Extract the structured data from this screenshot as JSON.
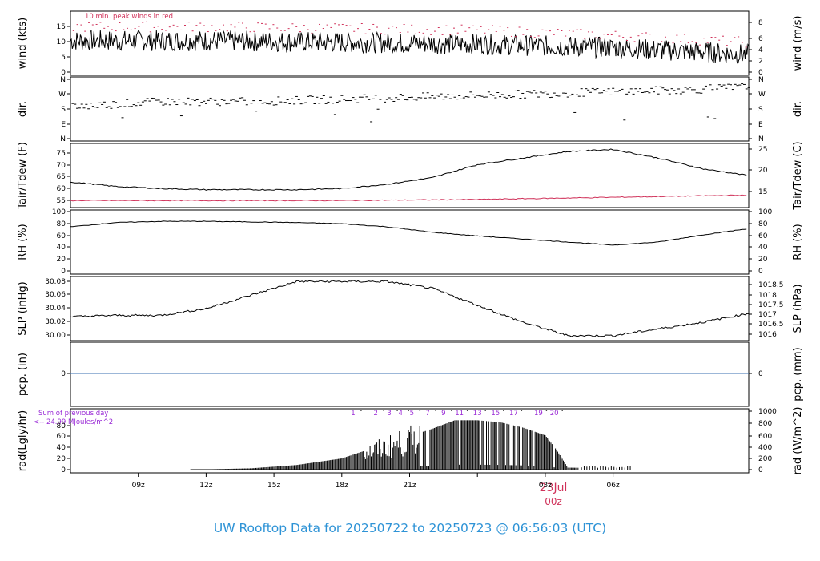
{
  "footer": {
    "title": "UW Rooftop Data for 20250722  to  20250723 @ 06:56:03  (UTC)"
  },
  "colors": {
    "peak": "#d0325a",
    "dew": "#d0325a",
    "precip": "#3a6fb0",
    "title": "#2e93d6",
    "rad_note": "#9a2bd6",
    "date": "#d0325a"
  },
  "chart_data": [
    {
      "type": "line",
      "id": "wind",
      "ylabel_left": "wind (kts)",
      "ylabel_right": "wind (m/s)",
      "ylim": [
        0,
        17.5
      ],
      "yticks_left": [
        "0",
        "5",
        "10",
        "15"
      ],
      "yticks_right": [
        "0",
        "2",
        "4",
        "6",
        "8"
      ],
      "note": "10 min. peak winds in red",
      "series": [
        {
          "x": [
            0,
            6,
            12,
            18,
            24,
            30
          ],
          "values": [
            9.5,
            9.5,
            9,
            8.5,
            7.5,
            5.5
          ]
        },
        {
          "x": [
            0,
            6,
            12,
            18,
            24,
            30
          ],
          "values": [
            13.5,
            13.5,
            13,
            12.5,
            11,
            9
          ]
        }
      ]
    },
    {
      "type": "scatter",
      "id": "dir",
      "ylabel_left": "dir.",
      "ylabel_right": "dir.",
      "yticks_left": [
        "N",
        "E",
        "S",
        "W",
        "N"
      ],
      "yticks_right": [
        "N",
        "E",
        "S",
        "W",
        "N"
      ],
      "series": [
        {
          "x": [
            0,
            4,
            8,
            12,
            16,
            20,
            24,
            28,
            30
          ],
          "values": [
            195,
            225,
            225,
            240,
            255,
            270,
            285,
            300,
            315
          ]
        }
      ]
    },
    {
      "type": "line",
      "id": "temp",
      "ylabel_left": "Tair/Tdew (F)",
      "ylabel_right": "Tair/Tdew (C)",
      "ylim": [
        51,
        79
      ],
      "yticks_left": [
        "55",
        "60",
        "65",
        "70",
        "75"
      ],
      "yticks_right": [
        "15",
        "20",
        "25"
      ],
      "series": [
        {
          "x": [
            0,
            2,
            4,
            6,
            8,
            10,
            12,
            14,
            16,
            18,
            20,
            22,
            24,
            26,
            28,
            30
          ],
          "values": [
            62,
            60,
            59,
            58.5,
            58.5,
            58.5,
            59,
            61,
            64,
            70,
            73,
            76,
            77,
            73,
            68,
            65
          ]
        },
        {
          "x": [
            0,
            6,
            12,
            18,
            24,
            30
          ],
          "values": [
            53.5,
            53.5,
            53.5,
            54,
            55,
            56
          ]
        }
      ]
    },
    {
      "type": "line",
      "id": "rh",
      "ylabel_left": "RH (%)",
      "ylabel_right": "RH (%)",
      "ylim": [
        0,
        100
      ],
      "yticks_left": [
        "0",
        "20",
        "40",
        "60",
        "80",
        "100"
      ],
      "yticks_right": [
        "0",
        "20",
        "40",
        "60",
        "80",
        "100"
      ],
      "series": [
        {
          "x": [
            0,
            2,
            4,
            6,
            8,
            10,
            12,
            14,
            16,
            18,
            20,
            22,
            24,
            26,
            28,
            30
          ],
          "values": [
            75,
            82,
            84,
            84,
            83,
            82,
            80,
            75,
            66,
            60,
            55,
            50,
            45,
            50,
            62,
            72
          ]
        }
      ]
    },
    {
      "type": "line",
      "id": "slp",
      "ylabel_left": "SLP (inHg)",
      "ylabel_right": "SLP (hPa)",
      "ylim": [
        29.995,
        30.085
      ],
      "yticks_left": [
        "30.00",
        "30.02",
        "30.04",
        "30.06",
        "30.08"
      ],
      "yticks_right": [
        "1016",
        "1016.5",
        "1017",
        "1017.5",
        "1018",
        "1018.5"
      ],
      "series": [
        {
          "x": [
            0,
            2,
            4,
            6,
            8,
            10,
            12,
            14,
            16,
            18,
            20,
            22,
            24,
            26,
            28,
            30
          ],
          "values": [
            30.028,
            30.03,
            30.03,
            30.04,
            30.06,
            30.08,
            30.08,
            30.08,
            30.07,
            30.045,
            30.02,
            30.0,
            30.0,
            30.01,
            30.02,
            30.033
          ]
        }
      ]
    },
    {
      "type": "line",
      "id": "pcp",
      "ylabel_left": "pcp. (in)",
      "ylabel_right": "pcp. (mm)",
      "yticks_left": [
        "0"
      ],
      "yticks_right": [
        "0"
      ],
      "series": [
        {
          "x": [
            0,
            30
          ],
          "values": [
            0,
            0
          ]
        }
      ]
    },
    {
      "type": "bar",
      "id": "rad",
      "ylabel_left": "rad(Lgly/hr)",
      "ylabel_right": "rad (W/m^2)",
      "ylim": [
        0,
        90
      ],
      "yticks_left": [
        "0",
        "20",
        "40",
        "60",
        "80"
      ],
      "yticks_right": [
        "0",
        "200",
        "400",
        "600",
        "800",
        "1000"
      ],
      "note1": "Sum of previous day",
      "note2": "<-- 24.99 MJoules/m^2",
      "hour_labels": [
        "1",
        "2",
        "3",
        "4",
        "5",
        "7",
        "9",
        "11",
        "13",
        "15",
        "17",
        "19",
        "20"
      ],
      "series": [
        {
          "x": [
            5.5,
            8,
            10,
            12,
            14,
            16,
            17,
            18,
            19,
            20,
            21,
            21.5,
            22,
            30
          ],
          "values": [
            0,
            2,
            7,
            17,
            40,
            62,
            75,
            75,
            72,
            64,
            52,
            30,
            3,
            0
          ]
        }
      ]
    }
  ],
  "xaxis": {
    "ticks": [
      "09z",
      "12z",
      "15z",
      "18z",
      "21z",
      "03z",
      "06z"
    ],
    "date": "23Jul",
    "date_sub": "00z"
  }
}
